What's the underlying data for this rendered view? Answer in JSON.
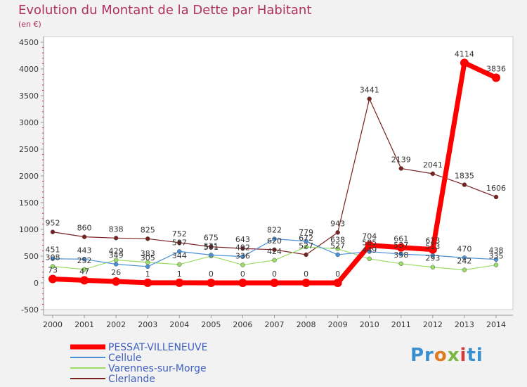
{
  "title": "Evolution du Montant de la Dette par Habitant",
  "subtitle": "(en €)",
  "logo": "Proxiti",
  "chart_data": {
    "type": "line",
    "x": [
      "2000",
      "2001",
      "2002",
      "2003",
      "2004",
      "2005",
      "2006",
      "2007",
      "2008",
      "2009",
      "2010",
      "2011",
      "2012",
      "2013",
      "2014"
    ],
    "ylim": [
      -500,
      4500
    ],
    "yticks": [
      -500,
      0,
      500,
      1000,
      1500,
      2000,
      2500,
      3000,
      3500,
      4000,
      4500
    ],
    "grid": false,
    "legend_position": "bottom-left",
    "series": [
      {
        "name": "PESSAT-VILLENEUVE",
        "color": "#ff0000",
        "width": 7,
        "dot": 6,
        "values": [
          73,
          47,
          26,
          1,
          1,
          0,
          0,
          0,
          0,
          0,
          704,
          661,
          623,
          4114,
          3836
        ],
        "labels": [
          "73",
          "47",
          "26",
          "1",
          "1",
          "0",
          "0",
          "0",
          "0",
          "0",
          "704",
          "661",
          "623",
          "4114",
          "3836"
        ]
      },
      {
        "name": "Cellule",
        "color": "#4a90d9",
        "width": 1.2,
        "dot": 3,
        "values": [
          451,
          443,
          349,
          305,
          587,
          521,
          492,
          822,
          779,
          527,
          585,
          537,
          513,
          470,
          438
        ],
        "labels": [
          "451",
          "443",
          "349",
          "305",
          "587",
          "521",
          "492",
          "822",
          "779",
          "527",
          "585",
          "537",
          "513",
          "470",
          "438"
        ]
      },
      {
        "name": "Varennes-sur-Morge",
        "color": "#99dd66",
        "width": 1.2,
        "dot": 3,
        "values": [
          308,
          252,
          429,
          383,
          344,
          501,
          336,
          424,
          672,
          638,
          449,
          358,
          293,
          242,
          335
        ],
        "labels": [
          "308",
          "252",
          "429",
          "383",
          "344",
          "501",
          "336",
          "424",
          "672",
          "638",
          "449",
          "358",
          "293",
          "242",
          "335"
        ]
      },
      {
        "name": "Clerlande",
        "color": "#7a2020",
        "width": 1.2,
        "dot": 3,
        "values": [
          952,
          860,
          838,
          825,
          752,
          675,
          643,
          620,
          527,
          943,
          3441,
          2139,
          2041,
          1835,
          1606
        ],
        "labels": [
          "952",
          "860",
          "838",
          "825",
          "752",
          "675",
          "643",
          "620",
          "527",
          "943",
          "3441",
          "2139",
          "2041",
          "1835",
          "1606"
        ]
      }
    ]
  }
}
